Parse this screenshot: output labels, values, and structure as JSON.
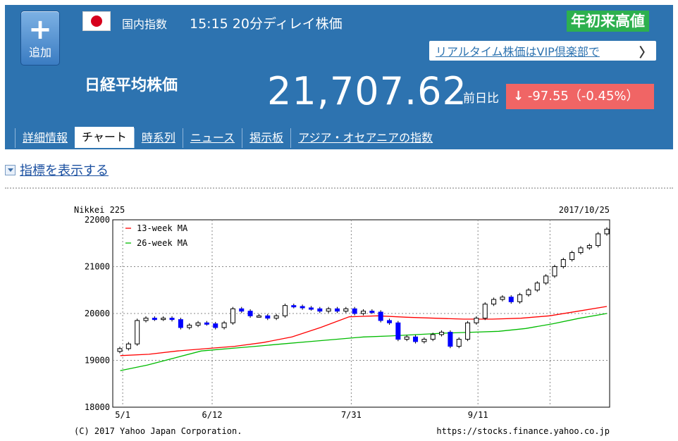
{
  "header": {
    "add_label": "追加",
    "category": "国内指数",
    "delay_info": "15:15 20分ディレイ株価",
    "ytd_badge": "年初来高値",
    "vip_link": "リアルタイム株価はVIP倶楽部で",
    "vip_chevron": "〉",
    "title": "日経平均株価",
    "price": "21,707.62",
    "prev_label": "前日比",
    "change_arrow": "↓",
    "change": "-97.55（-0.45%）"
  },
  "tabs": [
    "詳細情報",
    "チャート",
    "時系列",
    "ニュース",
    "掲示板",
    "アジア・オセアニアの指数"
  ],
  "active_tab": "チャート",
  "indicator_toggle": "指標を表示する",
  "colors": {
    "header_bg": "#2d73b0",
    "up_bar": "#0000ff",
    "ytd_green": "#2db04e",
    "change_red": "#f06565",
    "ma13": "#ff0000",
    "ma26": "#00bb00"
  },
  "chart_data": {
    "type": "candlestick",
    "title_left": "Nikkei 225",
    "title_right": "2017/10/25",
    "y_ticks": [
      "22000",
      "21000",
      "20000",
      "19000",
      "18000"
    ],
    "ylim": [
      18000,
      22000
    ],
    "x_ticks": [
      "5/1",
      "6/12",
      "7/31",
      "9/11"
    ],
    "legend": [
      "13-week MA",
      "26-week MA"
    ],
    "legend_placement": "top-left",
    "grid": true,
    "footer_left": "(C) 2017 Yahoo Japan Corporation.",
    "footer_right": "https://stocks.finance.yahoo.co.jp",
    "price_series": [
      19250,
      19350,
      19850,
      19900,
      19880,
      19900,
      19870,
      19700,
      19750,
      19800,
      19780,
      19700,
      19800,
      20100,
      20050,
      19950,
      19950,
      19900,
      19950,
      20170,
      20150,
      20120,
      20100,
      20050,
      20100,
      20050,
      20100,
      20000,
      20050,
      20030,
      19850,
      19800,
      19450,
      19500,
      19400,
      19450,
      19550,
      19600,
      19300,
      19450,
      19800,
      19900,
      20200,
      20300,
      20350,
      20250,
      20400,
      20500,
      20650,
      20800,
      21000,
      21150,
      21300,
      21400,
      21450,
      21700,
      21800
    ],
    "series": [
      {
        "name": "13-week MA",
        "values": [
          19100,
          19130,
          19200,
          19250,
          19300,
          19380,
          19500,
          19700,
          19930,
          19950,
          19920,
          19900,
          19880,
          19880,
          19900,
          19950,
          20050,
          20150
        ]
      },
      {
        "name": "26-week MA",
        "values": [
          18780,
          18900,
          19050,
          19200,
          19250,
          19300,
          19350,
          19400,
          19450,
          19500,
          19520,
          19550,
          19580,
          19600,
          19620,
          19680,
          19780,
          19900,
          20000
        ]
      }
    ]
  }
}
